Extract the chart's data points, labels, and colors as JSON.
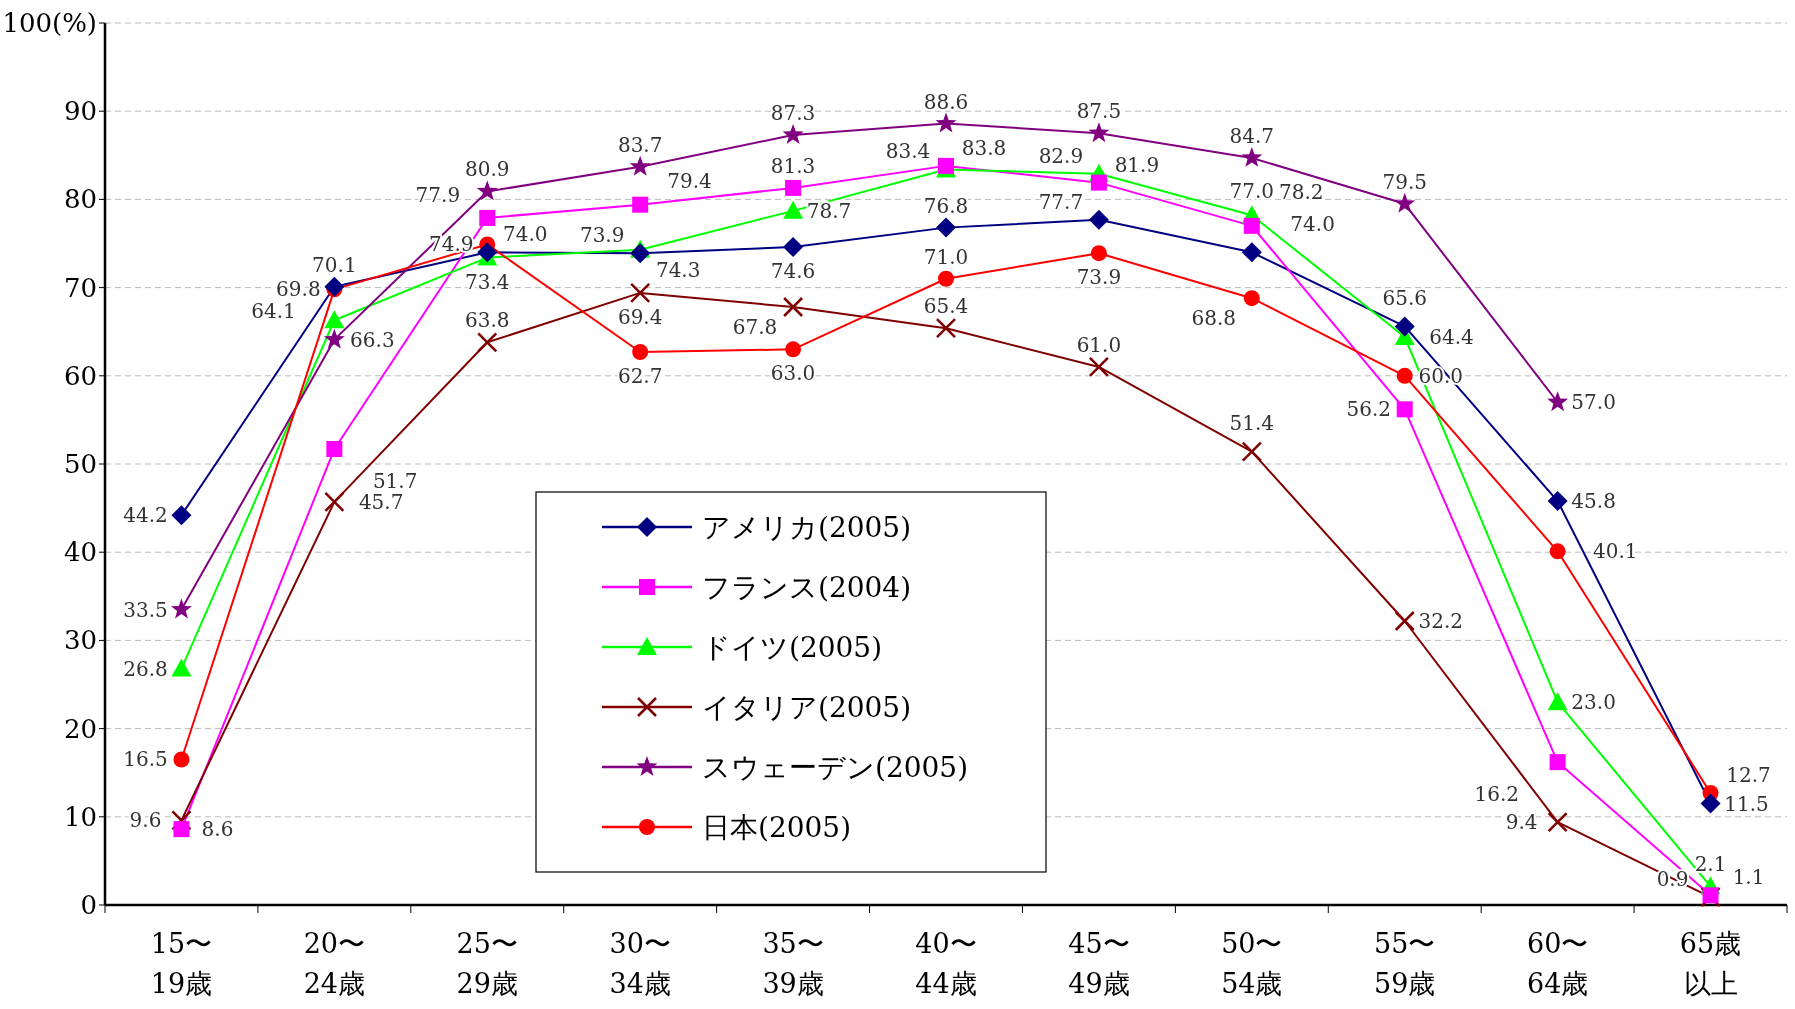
{
  "chart_data": {
    "type": "line",
    "categories": [
      "15〜\n19歳",
      "20〜\n24歳",
      "25〜\n29歳",
      "30〜\n34歳",
      "35〜\n39歳",
      "40〜\n44歳",
      "45〜\n49歳",
      "50〜\n54歳",
      "55〜\n59歳",
      "60〜\n64歳",
      "65歳以上"
    ],
    "ylim": [
      0,
      100
    ],
    "yticks": [
      0,
      10,
      20,
      30,
      40,
      50,
      60,
      70,
      80,
      90,
      {
        "value": 100,
        "label": "100(%)"
      }
    ],
    "grid": "y",
    "legend": "bottom",
    "series": [
      {
        "name": "アメリカ(2005)",
        "color": "#000080",
        "marker": "diamond",
        "values": [
          44.2,
          70.1,
          74.0,
          73.9,
          74.6,
          76.8,
          77.7,
          74.0,
          65.6,
          45.8,
          11.5
        ],
        "value_labels": [
          "44.2",
          "70.1",
          "74.0",
          "73.9",
          "74.6",
          "76.8",
          "77.7",
          "74.0",
          "65.6",
          "45.8",
          "11.5"
        ]
      },
      {
        "name": "フランス(2004)",
        "color": "#ff00ff",
        "marker": "square",
        "values": [
          8.6,
          51.7,
          77.9,
          79.4,
          81.3,
          83.8,
          81.9,
          77.0,
          56.2,
          16.2,
          1.1
        ],
        "value_labels": [
          "8.6",
          "51.7",
          "77.9",
          "79.4",
          "81.3",
          "83.8",
          "81.9",
          "77.0",
          "56.2",
          "16.2",
          "1.1"
        ]
      },
      {
        "name": "ドイツ(2005)",
        "color": "#00ff00",
        "marker": "triangle",
        "values": [
          26.8,
          66.3,
          73.4,
          74.3,
          78.7,
          83.4,
          82.9,
          78.2,
          64.4,
          23.0,
          2.1
        ],
        "value_labels": [
          "26.8",
          "66.3",
          "73.4",
          "74.3",
          "78.7",
          "83.4",
          "82.9",
          "78.2",
          "64.4",
          "23.0",
          "2.1"
        ]
      },
      {
        "name": "イタリア(2005)",
        "color": "#800000",
        "marker": "cross",
        "values": [
          9.6,
          45.7,
          63.8,
          69.4,
          67.8,
          65.4,
          61.0,
          51.4,
          32.2,
          9.4,
          0.9
        ],
        "value_labels": [
          "9.6",
          "45.7",
          "63.8",
          "69.4",
          "67.8",
          "65.4",
          "61.0",
          "51.4",
          "32.2",
          "9.4",
          "0.9"
        ]
      },
      {
        "name": "スウェーデン(2005)",
        "color": "#800080",
        "marker": "star",
        "values": [
          33.5,
          64.1,
          80.9,
          83.7,
          87.3,
          88.6,
          87.5,
          84.7,
          79.5,
          57.0,
          null
        ],
        "value_labels": [
          "33.5",
          "64.1",
          "80.9",
          "83.7",
          "87.3",
          "88.6",
          "87.5",
          "84.7",
          "79.5",
          "57.0",
          null
        ]
      },
      {
        "name": "日本(2005)",
        "color": "#ff0000",
        "marker": "circle",
        "values": [
          16.5,
          69.8,
          74.9,
          62.7,
          63.0,
          71.0,
          73.9,
          68.8,
          60.0,
          40.1,
          12.7
        ],
        "value_labels": [
          "16.5",
          "69.8",
          "74.9",
          "62.7",
          "63.0",
          "71.0",
          "73.9",
          "68.8",
          "60.0",
          "40.1",
          "12.7"
        ]
      }
    ]
  }
}
